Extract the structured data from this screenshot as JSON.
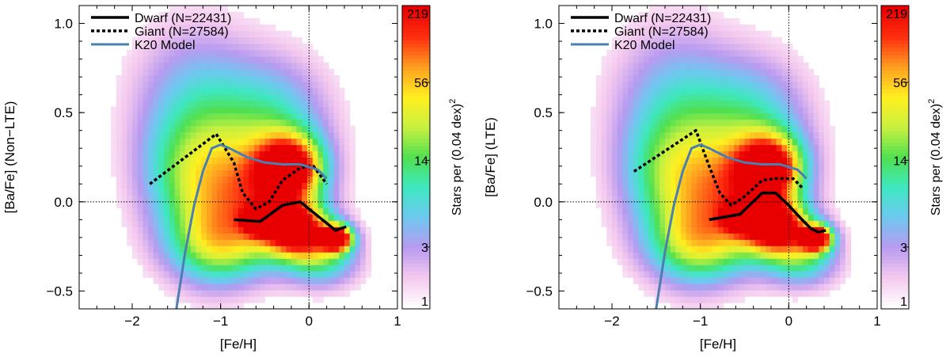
{
  "chart_data": [
    {
      "type": "heatmap",
      "title": "",
      "xlabel": "[Fe/H]",
      "ylabel": "[Ba/Fe] (Non−LTE)",
      "xlim": [
        -2.6,
        1.0
      ],
      "ylim": [
        -0.6,
        1.1
      ],
      "xticks": [
        -2,
        -1,
        0,
        1
      ],
      "xtick_labels": [
        "−2",
        "−1",
        "0",
        "1"
      ],
      "yticks": [
        -0.5,
        0.0,
        0.5,
        1.0
      ],
      "ytick_labels": [
        "−0.5",
        "0.0",
        "0.5",
        "1.0"
      ],
      "reference_lines": {
        "x": 0,
        "y": 0
      },
      "colorbar": {
        "label": "Stars per (0.04 dex)",
        "label_superscript": "2",
        "tick_labels": [
          "1",
          "3",
          "14",
          "56",
          "219"
        ],
        "tick_values": [
          1,
          3,
          14,
          56,
          219
        ],
        "scale": "log",
        "colors": [
          "#ffffff",
          "#f4c8ee",
          "#b89af0",
          "#6ec8f0",
          "#3ee8c0",
          "#50e050",
          "#c8f040",
          "#fff020",
          "#ffa020",
          "#ff3010",
          "#e80000"
        ]
      },
      "series": [
        {
          "name": "Dwarf",
          "legend": "Dwarf (N=22431)",
          "style": "solid",
          "color": "#000000",
          "x": [
            -0.85,
            -0.55,
            -0.3,
            -0.1,
            0.05,
            0.2,
            0.3,
            0.42
          ],
          "y": [
            -0.1,
            -0.11,
            -0.02,
            0.0,
            -0.06,
            -0.12,
            -0.16,
            -0.14
          ]
        },
        {
          "name": "Giant",
          "legend": "Giant  (N=27584)",
          "style": "dotted",
          "color": "#000000",
          "x": [
            -1.8,
            -1.05,
            -0.85,
            -0.75,
            -0.6,
            -0.45,
            -0.3,
            -0.1,
            0.05,
            0.2
          ],
          "y": [
            0.1,
            0.38,
            0.22,
            0.05,
            -0.04,
            0.0,
            0.12,
            0.19,
            0.2,
            0.1
          ]
        },
        {
          "name": "K20 Model",
          "legend": "K20 Model",
          "style": "solid",
          "color": "#4a7fb0",
          "x": [
            -1.5,
            -1.4,
            -1.3,
            -1.2,
            -1.1,
            -1.0,
            -0.9,
            -0.7,
            -0.5,
            -0.3,
            -0.1,
            0.1,
            0.2
          ],
          "y": [
            -0.6,
            -0.28,
            -0.02,
            0.17,
            0.3,
            0.32,
            0.3,
            0.25,
            0.22,
            0.21,
            0.21,
            0.18,
            0.13
          ]
        }
      ],
      "density_blobs": [
        {
          "x": 0.32,
          "y": -0.2,
          "sx": 0.12,
          "sy": 0.05,
          "w": 1.0
        },
        {
          "x": -0.55,
          "y": -0.1,
          "sx": 0.12,
          "sy": 0.05,
          "w": 0.8
        },
        {
          "x": -0.15,
          "y": -0.15,
          "sx": 0.25,
          "sy": 0.1,
          "w": 0.85
        },
        {
          "x": -0.2,
          "y": 0.2,
          "sx": 0.25,
          "sy": 0.12,
          "w": 0.75
        },
        {
          "x": -0.45,
          "y": 0.05,
          "sx": 0.4,
          "sy": 0.2,
          "w": 0.6
        },
        {
          "x": -1.1,
          "y": 0.05,
          "sx": 0.35,
          "sy": 0.3,
          "w": 0.42
        },
        {
          "x": -0.4,
          "y": 0.45,
          "sx": 0.45,
          "sy": 0.25,
          "w": 0.35
        },
        {
          "x": -1.55,
          "y": 0.15,
          "sx": 0.35,
          "sy": 0.25,
          "w": 0.25
        },
        {
          "x": -1.3,
          "y": 0.6,
          "sx": 0.5,
          "sy": 0.3,
          "w": 0.25
        },
        {
          "x": -0.95,
          "y": -0.25,
          "sx": 0.45,
          "sy": 0.15,
          "w": 0.4
        },
        {
          "x": 0.15,
          "y": -0.3,
          "sx": 0.3,
          "sy": 0.12,
          "w": 0.45
        }
      ]
    },
    {
      "type": "heatmap",
      "title": "",
      "xlabel": "[Fe/H]",
      "ylabel": "[Ba/Fe] (LTE)",
      "xlim": [
        -2.6,
        1.0
      ],
      "ylim": [
        -0.6,
        1.1
      ],
      "xticks": [
        -2,
        -1,
        0,
        1
      ],
      "xtick_labels": [
        "−2",
        "−1",
        "0",
        "1"
      ],
      "yticks": [
        -0.5,
        0.0,
        0.5,
        1.0
      ],
      "ytick_labels": [
        "−0.5",
        "0.0",
        "0.5",
        "1.0"
      ],
      "reference_lines": {
        "x": 0,
        "y": 0
      },
      "colorbar": {
        "label": "Stars per (0.04 dex)",
        "label_superscript": "2",
        "tick_labels": [
          "1",
          "3",
          "14",
          "56",
          "219"
        ],
        "tick_values": [
          1,
          3,
          14,
          56,
          219
        ],
        "scale": "log",
        "colors": [
          "#ffffff",
          "#f4c8ee",
          "#b89af0",
          "#6ec8f0",
          "#3ee8c0",
          "#50e050",
          "#c8f040",
          "#fff020",
          "#ffa020",
          "#ff3010",
          "#e80000"
        ]
      },
      "series": [
        {
          "name": "Dwarf",
          "legend": "Dwarf (N=22431)",
          "style": "solid",
          "color": "#000000",
          "x": [
            -0.9,
            -0.55,
            -0.3,
            -0.15,
            0.0,
            0.15,
            0.25,
            0.33,
            0.42
          ],
          "y": [
            -0.1,
            -0.07,
            0.05,
            0.05,
            -0.02,
            -0.1,
            -0.15,
            -0.17,
            -0.16
          ]
        },
        {
          "name": "Giant",
          "legend": "Giant  (N=27584)",
          "style": "dotted",
          "color": "#000000",
          "x": [
            -1.75,
            -1.05,
            -0.9,
            -0.78,
            -0.65,
            -0.5,
            -0.3,
            -0.15,
            0.05,
            0.15
          ],
          "y": [
            0.17,
            0.4,
            0.2,
            0.05,
            -0.02,
            0.03,
            0.12,
            0.13,
            0.13,
            0.08
          ]
        },
        {
          "name": "K20 Model",
          "legend": "K20 Model",
          "style": "solid",
          "color": "#4a7fb0",
          "x": [
            -1.5,
            -1.4,
            -1.3,
            -1.2,
            -1.1,
            -1.0,
            -0.9,
            -0.7,
            -0.5,
            -0.3,
            -0.1,
            0.1,
            0.2
          ],
          "y": [
            -0.6,
            -0.28,
            -0.02,
            0.17,
            0.3,
            0.32,
            0.3,
            0.25,
            0.22,
            0.21,
            0.21,
            0.18,
            0.13
          ]
        }
      ],
      "density_blobs": [
        {
          "x": 0.32,
          "y": -0.2,
          "sx": 0.12,
          "sy": 0.05,
          "w": 1.0
        },
        {
          "x": -0.55,
          "y": -0.08,
          "sx": 0.12,
          "sy": 0.05,
          "w": 0.8
        },
        {
          "x": -0.15,
          "y": -0.13,
          "sx": 0.25,
          "sy": 0.1,
          "w": 0.85
        },
        {
          "x": -0.2,
          "y": 0.2,
          "sx": 0.25,
          "sy": 0.12,
          "w": 0.75
        },
        {
          "x": -0.45,
          "y": 0.05,
          "sx": 0.4,
          "sy": 0.2,
          "w": 0.6
        },
        {
          "x": -1.1,
          "y": 0.05,
          "sx": 0.35,
          "sy": 0.3,
          "w": 0.42
        },
        {
          "x": -0.4,
          "y": 0.45,
          "sx": 0.45,
          "sy": 0.25,
          "w": 0.35
        },
        {
          "x": -1.55,
          "y": 0.15,
          "sx": 0.35,
          "sy": 0.25,
          "w": 0.25
        },
        {
          "x": -1.3,
          "y": 0.6,
          "sx": 0.5,
          "sy": 0.3,
          "w": 0.25
        },
        {
          "x": -0.95,
          "y": -0.25,
          "sx": 0.45,
          "sy": 0.15,
          "w": 0.4
        },
        {
          "x": 0.15,
          "y": -0.3,
          "sx": 0.3,
          "sy": 0.12,
          "w": 0.45
        }
      ]
    }
  ]
}
